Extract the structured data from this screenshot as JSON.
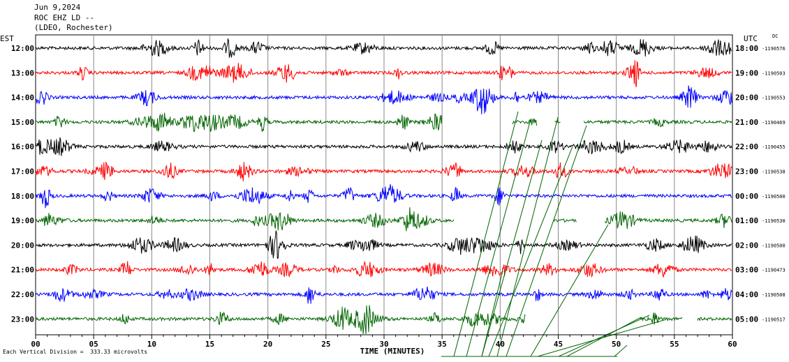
{
  "header": {
    "date": "Jun 9,2024",
    "station": "ROC EHZ LD --",
    "network": "(LDEO, Rochester)"
  },
  "left_timezone": "EST",
  "right_timezone": "UTC",
  "dc_label": "DC",
  "footer_note": "Each Vertical Division =  333.33 microvolts",
  "chart_data": {
    "type": "line",
    "xlabel": "TIME (MINUTES)",
    "xlim": [
      0,
      60
    ],
    "x_ticks": [
      "00",
      "05",
      "10",
      "15",
      "20",
      "25",
      "30",
      "35",
      "40",
      "45",
      "50",
      "55",
      "60"
    ],
    "trace_colors": [
      "#000000",
      "#ff0000",
      "#0000ff",
      "#006400"
    ],
    "rows": [
      {
        "left": "12:00",
        "right": "18:00",
        "dc": "-1190576",
        "color": "#000000",
        "gaps": []
      },
      {
        "left": "13:00",
        "right": "19:00",
        "dc": "-1190503",
        "color": "#ff0000",
        "gaps": []
      },
      {
        "left": "14:00",
        "right": "20:00",
        "dc": "-1190553",
        "color": "#0000ff",
        "gaps": []
      },
      {
        "left": "15:00",
        "right": "21:00",
        "dc": "-1190469",
        "color": "#006400",
        "gaps": [
          [
            35.0,
            41.0
          ],
          [
            43.2,
            44.7
          ],
          [
            45.2,
            47.2
          ]
        ]
      },
      {
        "left": "16:00",
        "right": "22:00",
        "dc": "-1190455",
        "color": "#000000",
        "gaps": []
      },
      {
        "left": "17:00",
        "right": "23:00",
        "dc": "-1190538",
        "color": "#ff0000",
        "gaps": []
      },
      {
        "left": "18:00",
        "right": "00:00",
        "dc": "-1190500",
        "color": "#0000ff",
        "gaps": []
      },
      {
        "left": "19:00",
        "right": "01:00",
        "dc": "-1190530",
        "color": "#006400",
        "gaps": [
          [
            36.0,
            44.6
          ],
          [
            46.6,
            49.0
          ]
        ]
      },
      {
        "left": "20:00",
        "right": "02:00",
        "dc": "-1190500",
        "color": "#000000",
        "gaps": []
      },
      {
        "left": "21:00",
        "right": "03:00",
        "dc": "-1190473",
        "color": "#ff0000",
        "gaps": []
      },
      {
        "left": "22:00",
        "right": "04:00",
        "dc": "-1190508",
        "color": "#0000ff",
        "gaps": []
      },
      {
        "left": "23:00",
        "right": "05:00",
        "dc": "-1190517",
        "color": "#006400",
        "gaps": [
          [
            42.2,
            52.0
          ],
          [
            55.7,
            57.0
          ]
        ]
      }
    ]
  }
}
